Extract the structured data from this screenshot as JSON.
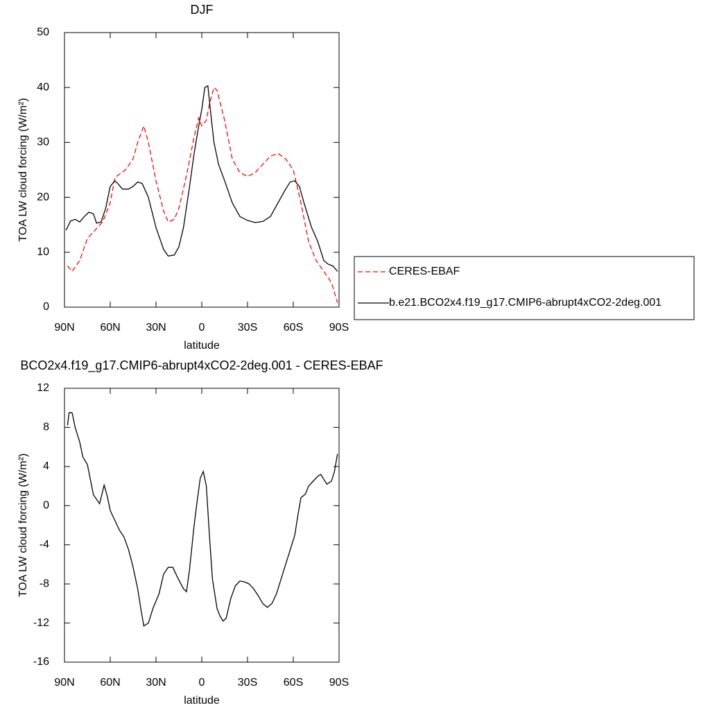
{
  "chart_data": [
    {
      "type": "line",
      "title": "DJF",
      "xlabel": "latitude",
      "ylabel": "TOA LW cloud forcing (W/m²)",
      "xlim": [
        90,
        -90
      ],
      "xticks": [
        {
          "value": 90,
          "label": "90N"
        },
        {
          "value": 60,
          "label": "60N"
        },
        {
          "value": 30,
          "label": "30N"
        },
        0,
        {
          "value": -30,
          "label": "30S"
        },
        {
          "value": -60,
          "label": "60S"
        },
        {
          "value": -90,
          "label": "90S"
        }
      ],
      "ylim": [
        0,
        50
      ],
      "yticks": [
        0,
        10,
        20,
        30,
        40,
        50
      ],
      "legend": "right",
      "series": [
        {
          "name": "CERES-EBAF",
          "color": "#ff0000",
          "linestyle": "dashed",
          "x": [
            88,
            85,
            80,
            75,
            70,
            65,
            60,
            57,
            55,
            50,
            45,
            42,
            38,
            35,
            30,
            25,
            22,
            18,
            15,
            10,
            5,
            2,
            0,
            -3,
            -5,
            -8,
            -10,
            -15,
            -20,
            -25,
            -30,
            -35,
            -40,
            -45,
            -50,
            -55,
            -60,
            -65,
            -70,
            -75,
            -80,
            -85,
            -89
          ],
          "values": [
            7.5,
            6.5,
            8.5,
            12.5,
            14,
            15.5,
            19,
            23.5,
            24,
            25,
            27,
            30,
            33,
            30,
            23,
            17.5,
            15.5,
            16,
            18,
            24,
            31,
            34.5,
            33,
            34,
            37,
            40,
            39.5,
            34,
            27,
            24.5,
            23.8,
            24.5,
            26,
            27.5,
            28,
            27,
            25,
            19,
            12,
            8.5,
            6.5,
            4.5,
            0.8
          ]
        },
        {
          "name": "b.e21.BCO2x4.f19_g17.CMIP6-abrupt4xCO2-2deg.001",
          "color": "#000000",
          "linestyle": "solid",
          "x": [
            89,
            86,
            83,
            80,
            77,
            74,
            71,
            69,
            66,
            63,
            60,
            57,
            55,
            52,
            48,
            45,
            42,
            39,
            35,
            30,
            25,
            22,
            18,
            15,
            12,
            8,
            5,
            2,
            0,
            -2,
            -4,
            -6,
            -8,
            -11,
            -15,
            -20,
            -25,
            -30,
            -35,
            -40,
            -45,
            -50,
            -55,
            -58,
            -61,
            -64,
            -67,
            -72,
            -76,
            -80,
            -83,
            -86,
            -89
          ],
          "values": [
            14,
            15.7,
            16,
            15.5,
            16.5,
            17.3,
            17,
            15.3,
            15.5,
            18,
            22,
            23,
            22.5,
            21.5,
            21.5,
            22,
            22.8,
            22.5,
            20,
            14.5,
            10.5,
            9.3,
            9.5,
            11,
            14.5,
            22,
            28,
            33,
            36,
            40,
            40.3,
            35,
            30,
            26,
            23,
            19,
            16.5,
            15.8,
            15.4,
            15.6,
            16.5,
            19,
            21.5,
            22.8,
            23,
            22,
            19,
            14.5,
            12,
            8.5,
            7.8,
            7.5,
            6.5
          ]
        }
      ]
    },
    {
      "type": "line",
      "title": "BCO2x4.f19_g17.CMIP6-abrupt4xCO2-2deg.001 - CERES-EBAF",
      "xlabel": "latitude",
      "ylabel": "TOA LW cloud forcing (W/m²)",
      "xlim": [
        90,
        -90
      ],
      "xticks": [
        {
          "value": 90,
          "label": "90N"
        },
        {
          "value": 60,
          "label": "60N"
        },
        {
          "value": 30,
          "label": "30N"
        },
        0,
        {
          "value": -30,
          "label": "30S"
        },
        {
          "value": -60,
          "label": "60S"
        },
        {
          "value": -90,
          "label": "90S"
        }
      ],
      "ylim": [
        -16,
        12
      ],
      "yticks": [
        -16,
        -12,
        -8,
        -4,
        0,
        4,
        8,
        12
      ],
      "series": [
        {
          "color": "#000000",
          "linestyle": "solid",
          "x": [
            88,
            87,
            85,
            83,
            80,
            78,
            75,
            71,
            67,
            64,
            62,
            60,
            57,
            54,
            51,
            48,
            45,
            42,
            40,
            38,
            35,
            32,
            28,
            25,
            22,
            19,
            16,
            12,
            10,
            8,
            5,
            3,
            1,
            -1,
            -3,
            -5,
            -7,
            -10,
            -12,
            -14,
            -16,
            -19,
            -22,
            -25,
            -28,
            -31,
            -34,
            -37,
            -40,
            -43,
            -46,
            -49,
            -52,
            -55,
            -58,
            -61,
            -63,
            -65,
            -68,
            -70,
            -73,
            -76,
            -78,
            -80,
            -82,
            -85,
            -87,
            -89
          ],
          "values": [
            8.2,
            9.5,
            9.5,
            8,
            6.5,
            5,
            4.2,
            1.1,
            0.2,
            2.1,
            1,
            -0.5,
            -1.5,
            -2.5,
            -3.2,
            -4.5,
            -6.3,
            -8.5,
            -10.5,
            -12.3,
            -12,
            -10.5,
            -9,
            -7,
            -6.3,
            -6.3,
            -7.3,
            -8.5,
            -8.8,
            -6.5,
            -2,
            0.5,
            2.8,
            3.5,
            2,
            -3,
            -7.5,
            -10.5,
            -11.3,
            -11.8,
            -11.5,
            -9.5,
            -8.2,
            -7.7,
            -7.8,
            -8,
            -8.5,
            -9.2,
            -10,
            -10.4,
            -10,
            -9,
            -7.5,
            -6,
            -4.5,
            -3,
            -1,
            0.8,
            1.2,
            2,
            2.5,
            3,
            3.2,
            2.7,
            2.2,
            2.5,
            3.5,
            5.3
          ]
        }
      ]
    }
  ]
}
